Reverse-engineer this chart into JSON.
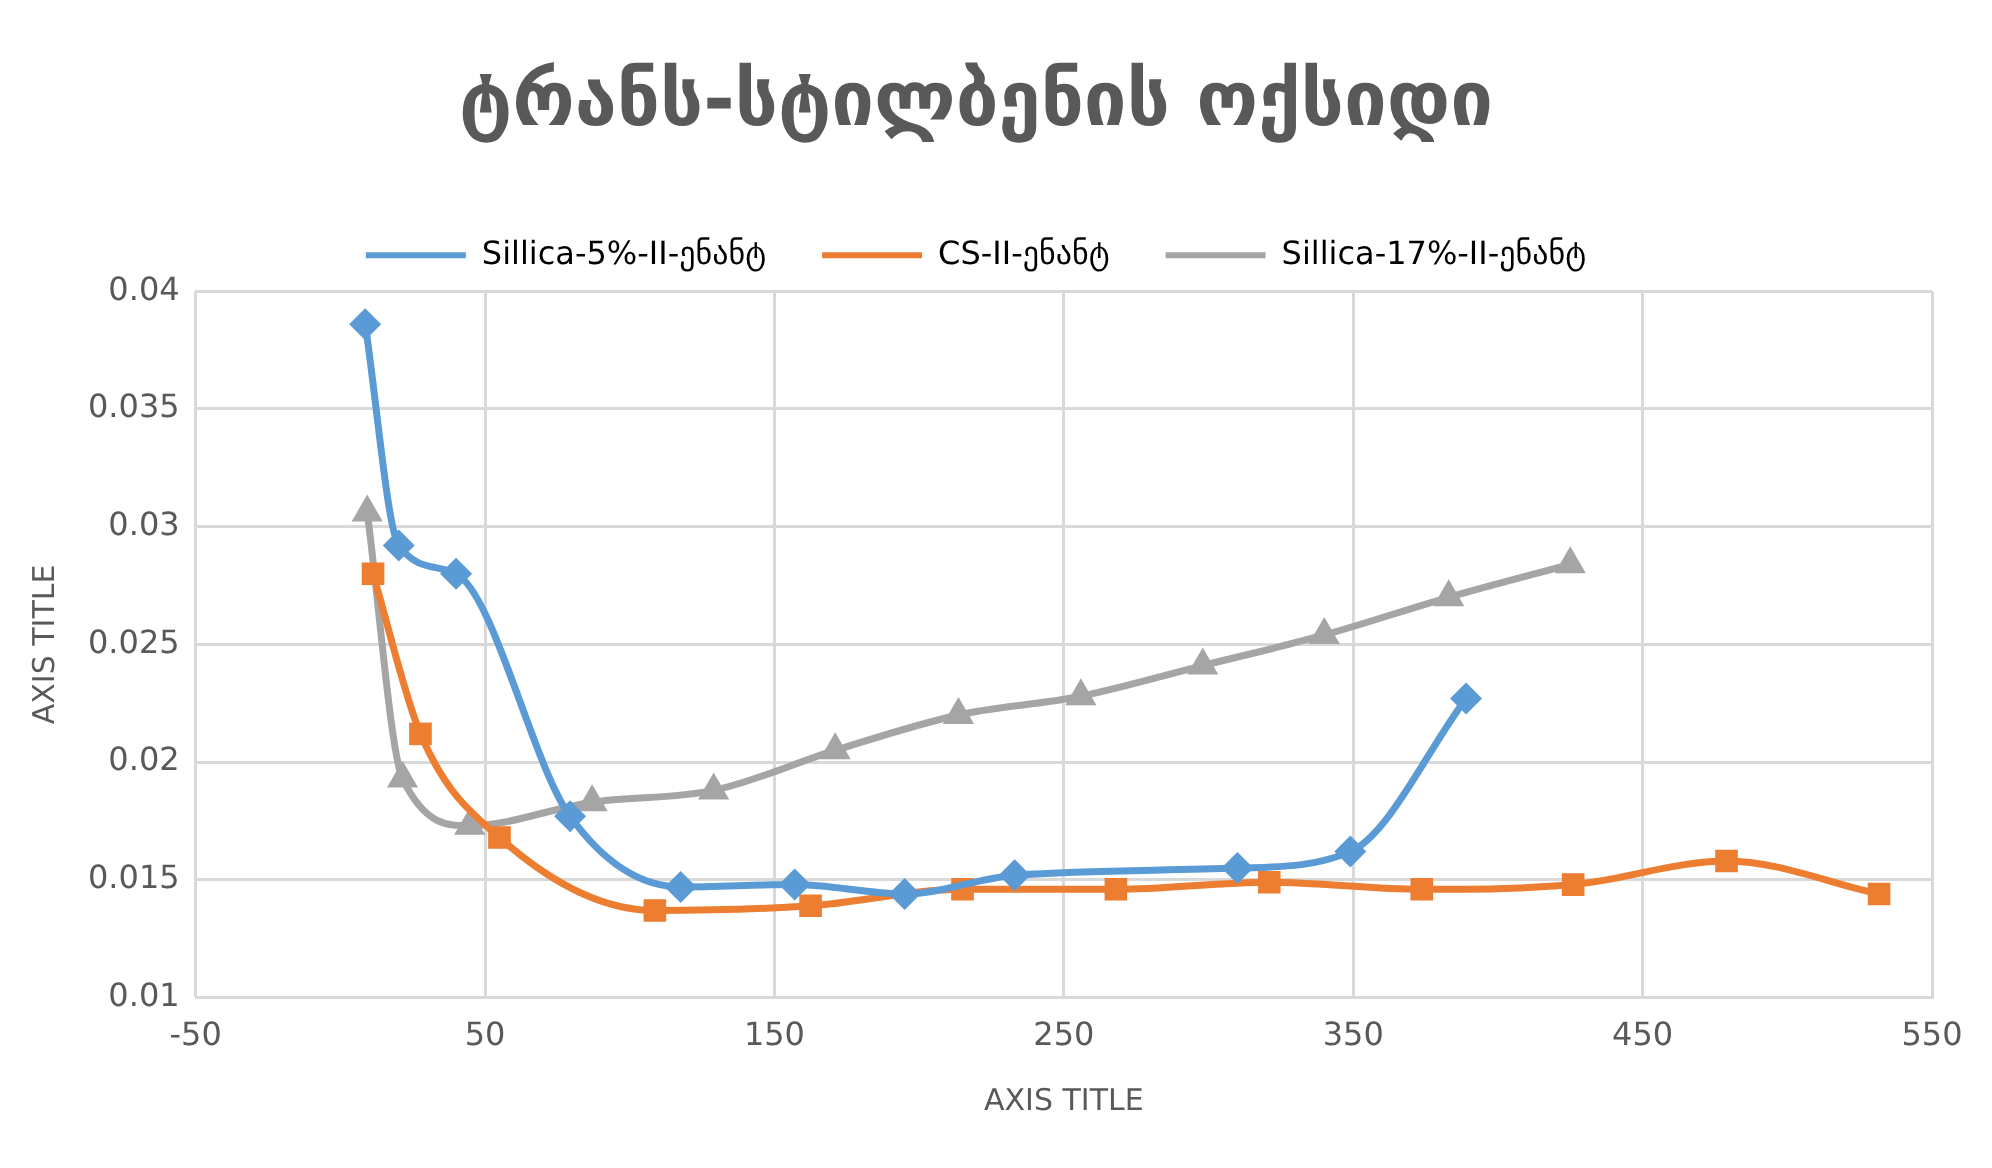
{
  "chart_data": {
    "type": "line",
    "title": "ტრანს-სტილბენის ოქსიდი",
    "xlabel": "AXIS TITLE",
    "ylabel": "AXIS TITLE",
    "xlim": [
      -50,
      550
    ],
    "xticks": [
      -50,
      50,
      150,
      250,
      350,
      450,
      550
    ],
    "ylim": [
      0.01,
      0.04
    ],
    "yticks": [
      0.01,
      0.015,
      0.02,
      0.025,
      0.03,
      0.035,
      0.04
    ],
    "grid": true,
    "legend": "top",
    "line_style": "solid",
    "series": [
      {
        "name": "Sillica-5%-II-ენანტ",
        "color": "#5b9bd5",
        "marker": "diamond",
        "x": [
          8.6,
          20.2,
          40,
          79.4,
          117.6,
          157,
          195,
          233,
          310,
          349,
          389
        ],
        "values": [
          0.0386,
          0.0292,
          0.028,
          0.0177,
          0.0147,
          0.0148,
          0.0144,
          0.0152,
          0.0155,
          0.0162,
          0.0227
        ]
      },
      {
        "name": "CS-II-ენანტ",
        "color": "#ed7d31",
        "marker": "square",
        "x": [
          11.3,
          27.7,
          55,
          108.7,
          162.5,
          215,
          268,
          321,
          373.7,
          426,
          479,
          531.7
        ],
        "values": [
          0.028,
          0.0212,
          0.0168,
          0.0137,
          0.0139,
          0.0146,
          0.0146,
          0.0149,
          0.0146,
          0.0148,
          0.0158,
          0.0144
        ]
      },
      {
        "name": "Sillica-17%-II-ენანტ",
        "color": "#a5a5a5",
        "marker": "triangle",
        "x": [
          9.3,
          21.5,
          44.7,
          87,
          129,
          171,
          213.6,
          255.9,
          298,
          340,
          383,
          425
        ],
        "values": [
          0.0306,
          0.0193,
          0.0173,
          0.0183,
          0.0188,
          0.0205,
          0.022,
          0.0228,
          0.0241,
          0.0254,
          0.027,
          0.0284
        ]
      }
    ]
  }
}
